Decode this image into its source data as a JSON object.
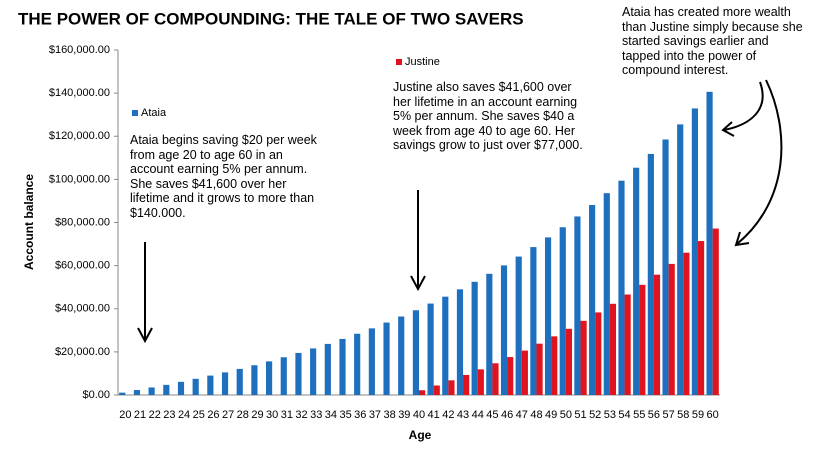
{
  "chart_data": {
    "type": "bar",
    "title": "THE POWER OF COMPOUNDING: THE TALE OF TWO SAVERS",
    "x_label": "Age",
    "y_label": "Account balance",
    "categories": [
      "20",
      "21",
      "22",
      "23",
      "24",
      "25",
      "26",
      "27",
      "28",
      "29",
      "30",
      "31",
      "32",
      "33",
      "34",
      "35",
      "36",
      "37",
      "38",
      "39",
      "40",
      "41",
      "42",
      "43",
      "44",
      "45",
      "46",
      "47",
      "48",
      "49",
      "50",
      "51",
      "52",
      "53",
      "54",
      "55",
      "56",
      "57",
      "58",
      "59",
      "60"
    ],
    "series": [
      {
        "name": "Ataia",
        "color": "#1f6fbf",
        "values": [
          1100,
          2300,
          3500,
          4700,
          6100,
          7500,
          9000,
          10500,
          12100,
          13800,
          15600,
          17500,
          19500,
          21600,
          23700,
          26000,
          28400,
          30900,
          33600,
          36400,
          39300,
          42400,
          45600,
          49000,
          52500,
          56200,
          60100,
          64200,
          68600,
          73100,
          77800,
          82800,
          88100,
          93600,
          99400,
          105400,
          111800,
          118500,
          125500,
          132900,
          140600
        ]
      },
      {
        "name": "Justine",
        "color": "#e0141e",
        "values": [
          null,
          null,
          null,
          null,
          null,
          null,
          null,
          null,
          null,
          null,
          null,
          null,
          null,
          null,
          null,
          null,
          null,
          null,
          null,
          null,
          2200,
          4400,
          6800,
          9300,
          11900,
          14700,
          17600,
          20600,
          23800,
          27200,
          30700,
          34400,
          38300,
          42300,
          46600,
          51100,
          55800,
          60800,
          66000,
          71400,
          77200
        ]
      }
    ],
    "ylim": [
      0,
      160000
    ],
    "yticks": [
      {
        "value": 0,
        "label": "$0.00"
      },
      {
        "value": 20000,
        "label": "$20,000.00"
      },
      {
        "value": 40000,
        "label": "$40,000.00"
      },
      {
        "value": 60000,
        "label": "$60,000.00"
      },
      {
        "value": 80000,
        "label": "$80,000.00"
      },
      {
        "value": 100000,
        "label": "$100,000.00"
      },
      {
        "value": 120000,
        "label": "$120,000.00"
      },
      {
        "value": 140000,
        "label": "$140,000.00"
      },
      {
        "value": 160000,
        "label": "$160,000.00"
      }
    ],
    "annotations": [
      "Ataia begins saving $20 per week from age 20 to age 60 in an account earning 5% per annum. She saves $41,600 over her lifetime and it grows to more than $140.000.",
      "Justine also saves $41,600 over her lifetime in an account earning 5% per annum. She saves $40 a week from age 40 to age 60. Her savings grow to just over $77,000.",
      "Ataia has created more wealth than Justine simply because she started savings earlier and tapped into the power of compound interest."
    ]
  }
}
